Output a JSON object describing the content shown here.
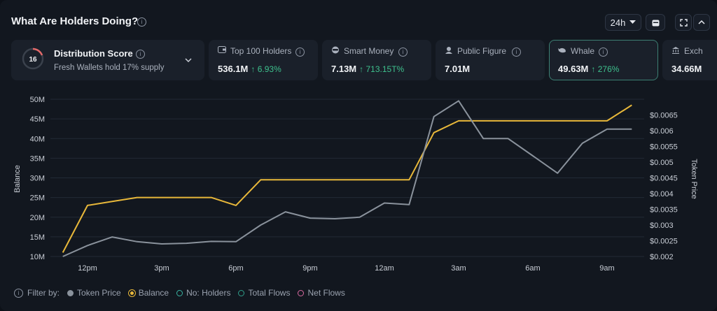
{
  "header": {
    "title": "What Are Holders Doing?",
    "timeframe": "24h",
    "info_glyph": "i"
  },
  "cards": {
    "distribution": {
      "score": "16",
      "label": "Distribution Score",
      "subtitle": "Fresh Wallets hold 17% supply"
    },
    "top100": {
      "label": "Top 100 Holders",
      "value": "536.1M",
      "change": "6.93%"
    },
    "smart_money": {
      "label": "Smart Money",
      "value": "7.13M",
      "change": "713.15T%"
    },
    "public_figure": {
      "label": "Public Figure",
      "value": "7.01M"
    },
    "whale": {
      "label": "Whale",
      "value": "49.63M",
      "change": "276%"
    },
    "exchange": {
      "label": "Exch",
      "value": "34.66M"
    }
  },
  "legend": {
    "filter_label": "Filter by:",
    "items": [
      "Token Price",
      "Balance",
      "No: Holders",
      "Total Flows",
      "Net Flows"
    ]
  },
  "colors": {
    "balance": "#e8b83a",
    "price": "#8a929c",
    "holders": "#38b2a0",
    "total_flows": "#2f9e8a",
    "net_flows": "#d86aa0",
    "accent_up": "#3ec08d"
  },
  "icons": [
    "info-icon",
    "chevron-down-icon",
    "calendar-icon",
    "expand-icon",
    "chevron-up-icon",
    "wallet-icon",
    "smart-money-icon",
    "public-figure-icon",
    "whale-icon",
    "exchange-icon"
  ],
  "chart_data": {
    "type": "line",
    "xlabel": "",
    "ylabel": "Balance",
    "y2label": "Token Price",
    "x_ticks": [
      "12pm",
      "3pm",
      "6pm",
      "9pm",
      "12am",
      "3am",
      "6am",
      "9am"
    ],
    "ylim": [
      10,
      50
    ],
    "y_ticks": [
      "50M",
      "45M",
      "40M",
      "35M",
      "30M",
      "25M",
      "20M",
      "15M",
      "10M"
    ],
    "y2lim": [
      0.002,
      0.007
    ],
    "y2_ticks": [
      "$0.0065",
      "$0.006",
      "$0.0055",
      "$0.005",
      "$0.0045",
      "$0.004",
      "$0.0035",
      "$0.003",
      "$0.0025",
      "$0.002"
    ],
    "grid": true,
    "series": [
      {
        "name": "Balance",
        "axis": "left",
        "x": [
          11,
          12,
          13,
          14,
          15,
          16,
          17,
          18,
          19,
          20,
          21,
          22,
          23,
          24,
          25,
          26,
          27,
          28,
          29,
          30,
          31,
          32,
          33,
          34
        ],
        "values": [
          11.0,
          23.0,
          24.0,
          25.0,
          25.0,
          25.0,
          25.0,
          23.0,
          29.5,
          29.5,
          29.5,
          29.5,
          29.5,
          29.5,
          29.5,
          41.5,
          44.5,
          44.5,
          44.5,
          44.5,
          44.5,
          44.5,
          44.5,
          48.5
        ]
      },
      {
        "name": "Token Price",
        "axis": "right",
        "x": [
          11,
          12,
          13,
          14,
          15,
          16,
          17,
          18,
          19,
          20,
          21,
          22,
          23,
          24,
          25,
          26,
          27,
          28,
          29,
          30,
          31,
          32,
          33,
          34
        ],
        "values": [
          0.002,
          0.00235,
          0.00262,
          0.00247,
          0.0024,
          0.00242,
          0.00248,
          0.00247,
          0.003,
          0.00342,
          0.00322,
          0.0032,
          0.00325,
          0.0037,
          0.00365,
          0.00645,
          0.00695,
          0.00575,
          0.00575,
          0.0052,
          0.00465,
          0.0056,
          0.00605,
          0.00605
        ]
      }
    ]
  }
}
